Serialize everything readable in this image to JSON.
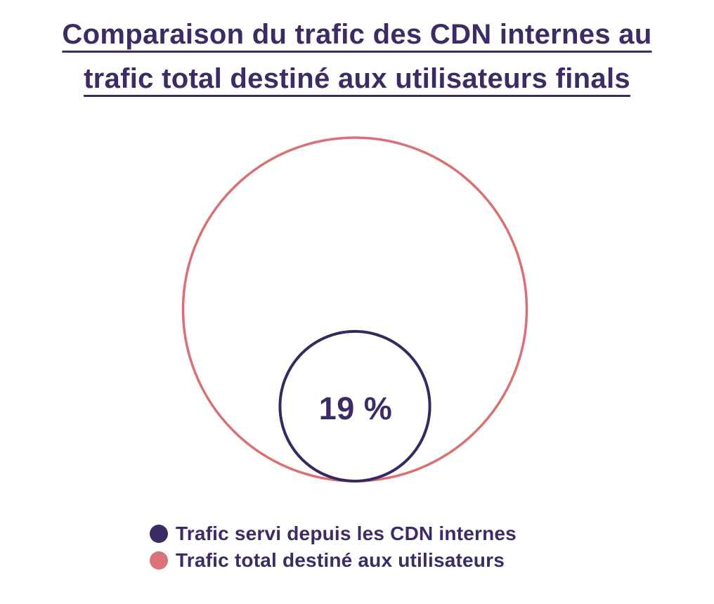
{
  "page": {
    "background": "#ffffff"
  },
  "title": {
    "line1": "Comparaison du trafic des CDN internes au",
    "line2": "trafic total destiné aux utilisateurs finals",
    "color": "#3d2c63"
  },
  "chart_data": {
    "type": "proportional-area-circles",
    "title": "Comparaison du trafic des CDN internes au trafic total destiné aux utilisateurs finals",
    "series": [
      {
        "name": "Trafic servi depuis les CDN internes",
        "value_pct": 19,
        "color": "#352a5f",
        "role": "inner"
      },
      {
        "name": "Trafic total destiné aux utilisateurs",
        "value_pct": 100,
        "color": "#d97174",
        "role": "outer"
      }
    ],
    "inner_label": "19 %",
    "legend_position": "bottom-left",
    "layout_note": "inner circle internally tangent to outer circle at bottom center"
  },
  "legend": {
    "items": [
      {
        "label": "Trafic servi depuis les CDN internes",
        "color": "#3a2d64"
      },
      {
        "label": "Trafic total destiné aux utilisateurs",
        "color": "#d8737b"
      }
    ]
  }
}
